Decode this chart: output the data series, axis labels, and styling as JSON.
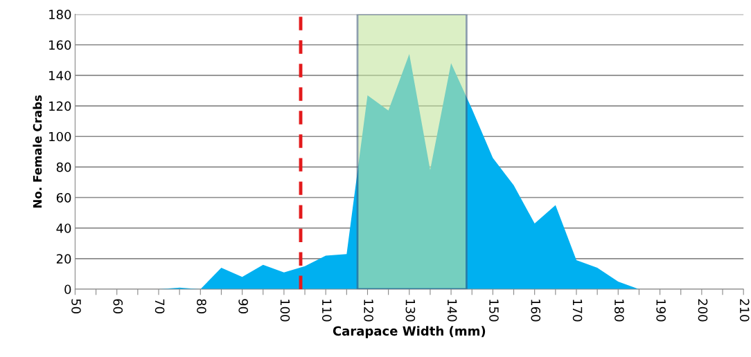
{
  "chart_data": {
    "type": "area",
    "xlabel": "Carapace Width (mm)",
    "ylabel": "No. Female Crabs",
    "x": [
      50,
      55,
      60,
      65,
      70,
      75,
      80,
      85,
      90,
      95,
      100,
      105,
      110,
      115,
      120,
      125,
      130,
      135,
      140,
      145,
      150,
      155,
      160,
      165,
      170,
      175,
      180,
      185,
      190,
      195,
      200,
      205,
      210
    ],
    "series": [
      {
        "color": "#00b0f0",
        "values": [
          0,
          0,
          0,
          0,
          0,
          1,
          0,
          14,
          8,
          16,
          11,
          15,
          22,
          23,
          127,
          117,
          154,
          78,
          148,
          118,
          86,
          68,
          43,
          55,
          19,
          14,
          5,
          0,
          0,
          0,
          0,
          0,
          0
        ]
      }
    ],
    "xlim": [
      50,
      210
    ],
    "xticks": [
      50,
      {
        "value": 55,
        "label": null
      },
      60,
      {
        "value": 65,
        "label": null
      },
      70,
      {
        "value": 75,
        "label": null
      },
      80,
      {
        "value": 85,
        "label": null
      },
      90,
      {
        "value": 95,
        "label": null
      },
      100,
      {
        "value": 105,
        "label": null
      },
      110,
      {
        "value": 115,
        "label": null
      },
      120,
      {
        "value": 125,
        "label": null
      },
      130,
      {
        "value": 135,
        "label": null
      },
      140,
      {
        "value": 145,
        "label": null
      },
      150,
      {
        "value": 155,
        "label": null
      },
      160,
      {
        "value": 165,
        "label": null
      },
      170,
      {
        "value": 175,
        "label": null
      },
      180,
      {
        "value": 185,
        "label": null
      },
      190,
      {
        "value": 195,
        "label": null
      },
      200,
      {
        "value": 205,
        "label": null
      },
      210
    ],
    "ylim": [
      0,
      180
    ],
    "yticks": [
      0,
      20,
      40,
      60,
      80,
      100,
      120,
      140,
      160,
      180
    ],
    "grid": "y",
    "ref_lines": [
      {
        "axis": "x",
        "value": 104,
        "color": "#e31a1c",
        "line_style": "dashed"
      }
    ],
    "bands": [
      {
        "axis": "x",
        "from": 117.6,
        "to": 143.7,
        "color": "#c4e59f"
      }
    ]
  }
}
